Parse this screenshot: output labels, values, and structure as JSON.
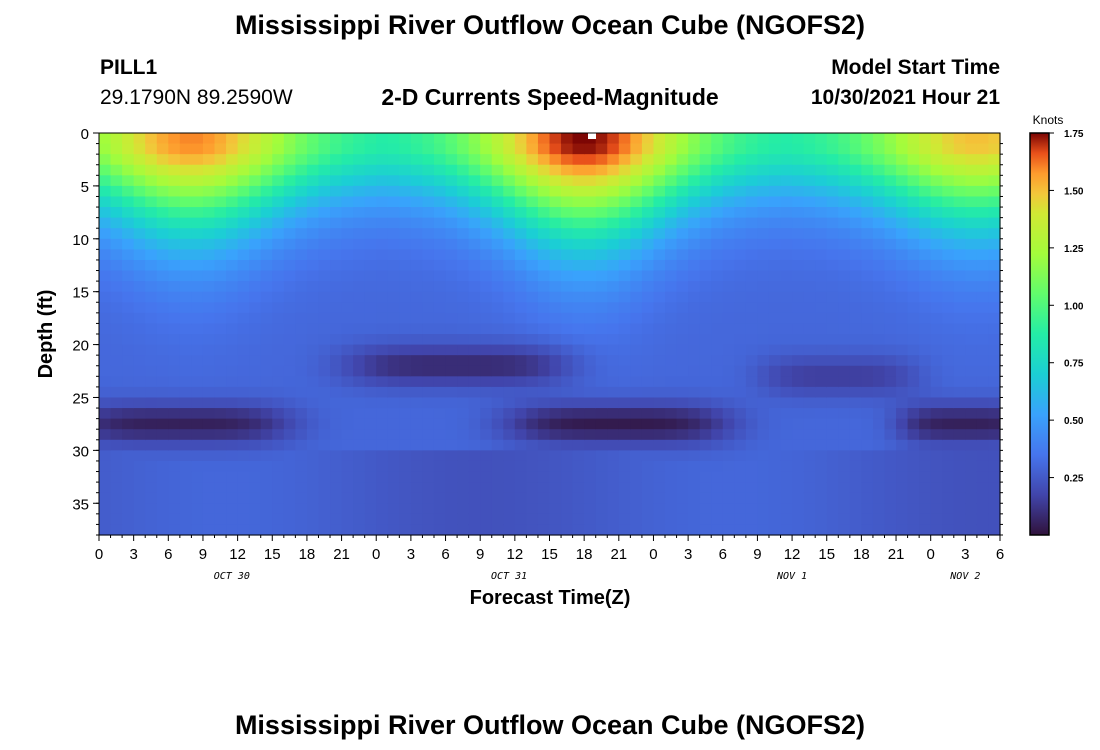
{
  "page": {
    "title_top": "Mississippi River Outflow Ocean Cube (NGOFS2)",
    "title_bottom": "Mississippi River Outflow Ocean Cube (NGOFS2)",
    "station": "PILL1",
    "coords": "29.1790N  89.2590W",
    "model_start_label": "Model Start Time",
    "model_start_value": "10/30/2021 Hour 21"
  },
  "chart_data": {
    "type": "heatmap",
    "title": "2-D Currents Speed-Magnitude",
    "xlabel": "Forecast Time(Z)",
    "ylabel": "Depth (ft)",
    "x_range_hours": [
      0,
      78
    ],
    "y_range_ft": [
      0,
      38
    ],
    "x_tick_labels": [
      "0",
      "3",
      "6",
      "9",
      "12",
      "15",
      "18",
      "21",
      "0",
      "3",
      "6",
      "9",
      "12",
      "15",
      "18",
      "21",
      "0",
      "3",
      "6",
      "9",
      "12",
      "15",
      "18",
      "21",
      "0",
      "3",
      "6"
    ],
    "y_tick_labels": [
      "0",
      "5",
      "10",
      "15",
      "20",
      "25",
      "30",
      "35"
    ],
    "y_tick_values": [
      0,
      5,
      10,
      15,
      20,
      25,
      30,
      35
    ],
    "date_labels": [
      {
        "label": "OCT 30",
        "hour": 11.5
      },
      {
        "label": "OCT 31",
        "hour": 35.5
      },
      {
        "label": "NOV 1",
        "hour": 60
      },
      {
        "label": "NOV 2",
        "hour": 75
      }
    ],
    "colorbar": {
      "unit": "Knots",
      "min": 0,
      "max": 1.75,
      "tick_labels": [
        "1.75",
        "1.50",
        "1.25",
        "1.00",
        "0.75",
        "0.50",
        "0.25"
      ],
      "tick_values": [
        1.75,
        1.5,
        1.25,
        1.0,
        0.75,
        0.5,
        0.25
      ]
    },
    "surface_speed_peaks": [
      {
        "hour": 8,
        "depth_ft": 3,
        "knots": 1.6
      },
      {
        "hour": 42,
        "depth_ft": 1,
        "knots": 1.75
      },
      {
        "hour": 76,
        "depth_ft": 2,
        "knots": 1.5
      }
    ],
    "low_speed_bands": [
      {
        "hour_start": 0,
        "hour_end": 14,
        "depth_ft": 27.5,
        "knots": 0.05
      },
      {
        "hour_start": 24,
        "hour_end": 38,
        "depth_ft": 22,
        "knots": 0.08
      },
      {
        "hour_start": 38,
        "hour_end": 52,
        "depth_ft": 27.5,
        "knots": 0.03
      },
      {
        "hour_start": 60,
        "hour_end": 68,
        "depth_ft": 23,
        "knots": 0.15
      },
      {
        "hour_start": 72,
        "hour_end": 78,
        "depth_ft": 27.5,
        "knots": 0.05
      }
    ]
  }
}
